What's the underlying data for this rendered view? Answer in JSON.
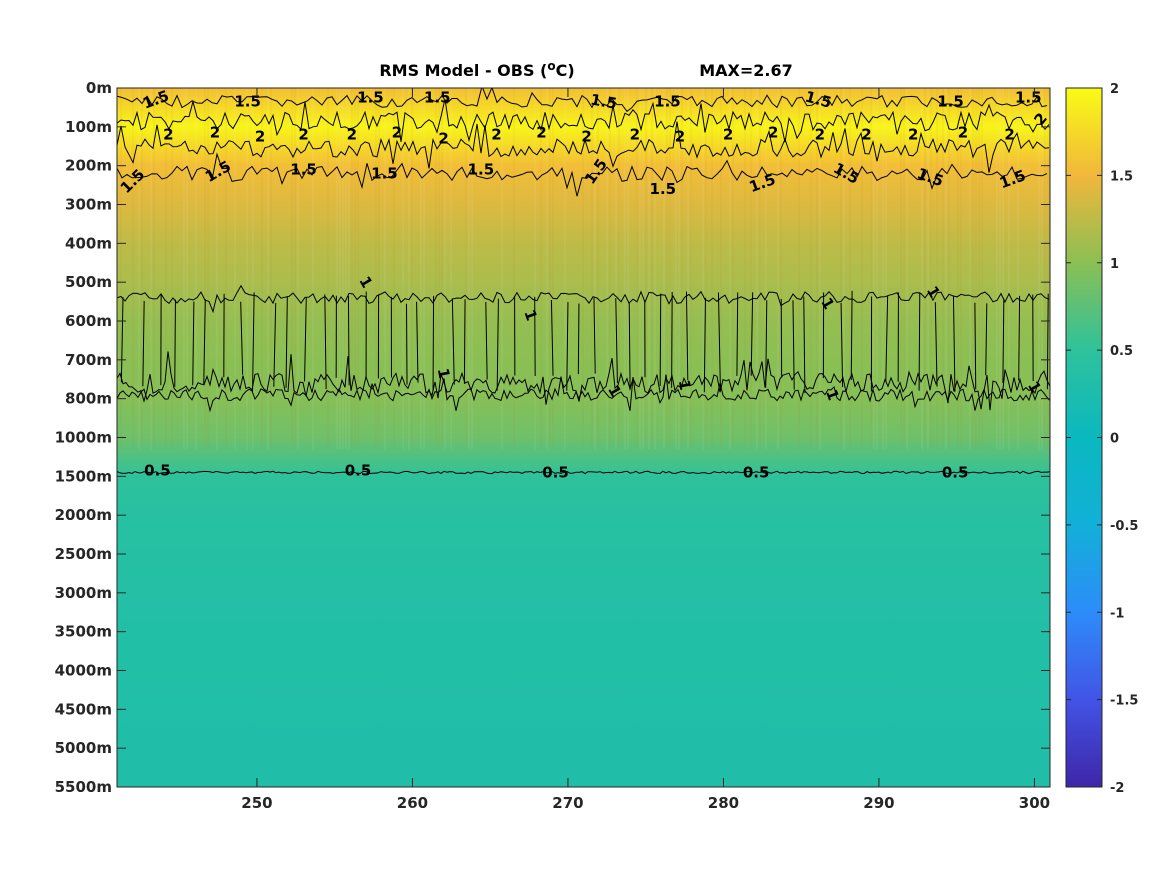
{
  "chart_data": {
    "type": "heatmap",
    "title": "RMS Model - OBS (",
    "title_sup": "o",
    "title_unit": "C)",
    "annotation": "MAX=2.67",
    "x": {
      "lim": [
        241,
        301
      ],
      "ticks": [
        250,
        260,
        270,
        280,
        290,
        300
      ],
      "tick_labels": [
        "250",
        "260",
        "270",
        "280",
        "290",
        "300"
      ]
    },
    "y": {
      "tick_labels": [
        "0m",
        "100m",
        "200m",
        "300m",
        "400m",
        "500m",
        "600m",
        "700m",
        "800m",
        "1000m",
        "1500m",
        "2000m",
        "2500m",
        "3000m",
        "3500m",
        "4000m",
        "4500m",
        "5000m",
        "5500m"
      ]
    },
    "color_limits": [
      -2,
      2
    ],
    "colormap": "parula",
    "colorbar": {
      "ticks": [
        2,
        1.5,
        1,
        0.5,
        0,
        -0.5,
        -1,
        -1.5,
        -2
      ],
      "tick_labels": [
        "2",
        "1.5",
        "1",
        "0.5",
        "0",
        "-0.5",
        "-1",
        "-1.5",
        "-2"
      ]
    },
    "depth_profile": [
      {
        "depth_label": "0m",
        "value": 1.55
      },
      {
        "depth_label": "100m",
        "value": 1.95
      },
      {
        "depth_label": "200m",
        "value": 1.55
      },
      {
        "depth_label": "300m",
        "value": 1.4
      },
      {
        "depth_label": "400m",
        "value": 1.25
      },
      {
        "depth_label": "500m",
        "value": 1.15
      },
      {
        "depth_label": "600m",
        "value": 1.05
      },
      {
        "depth_label": "700m",
        "value": 1.0
      },
      {
        "depth_label": "800m",
        "value": 0.98
      },
      {
        "depth_label": "1000m",
        "value": 0.85
      },
      {
        "depth_label": "1500m",
        "value": 0.5
      },
      {
        "depth_label": "2000m",
        "value": 0.4
      },
      {
        "depth_label": "2500m",
        "value": 0.38
      },
      {
        "depth_label": "3000m",
        "value": 0.36
      },
      {
        "depth_label": "3500m",
        "value": 0.34
      },
      {
        "depth_label": "4000m",
        "value": 0.33
      },
      {
        "depth_label": "4500m",
        "value": 0.32
      },
      {
        "depth_label": "5000m",
        "value": 0.31
      },
      {
        "depth_label": "5500m",
        "value": 0.31
      }
    ],
    "contour_labels": [
      {
        "text": "1.5",
        "x": 243.5,
        "depth_index": 0.3,
        "rot": -20
      },
      {
        "text": "1.5",
        "x": 249.4,
        "depth_index": 0.35,
        "rot": 0
      },
      {
        "text": "1.5",
        "x": 257.3,
        "depth_index": 0.25,
        "rot": 0
      },
      {
        "text": "1.5",
        "x": 261.6,
        "depth_index": 0.25,
        "rot": 0
      },
      {
        "text": "1.5",
        "x": 272.3,
        "depth_index": 0.35,
        "rot": 10
      },
      {
        "text": "1.5",
        "x": 276.4,
        "depth_index": 0.35,
        "rot": 0
      },
      {
        "text": "1.5",
        "x": 286.1,
        "depth_index": 0.3,
        "rot": 15
      },
      {
        "text": "1.5",
        "x": 294.6,
        "depth_index": 0.35,
        "rot": 0
      },
      {
        "text": "1.5",
        "x": 299.6,
        "depth_index": 0.25,
        "rot": 0
      },
      {
        "text": "1.5",
        "x": 242.0,
        "depth_index": 2.4,
        "rot": -45
      },
      {
        "text": "1.5",
        "x": 247.5,
        "depth_index": 2.15,
        "rot": -30
      },
      {
        "text": "1.5",
        "x": 253.0,
        "depth_index": 2.1,
        "rot": 0
      },
      {
        "text": "1.5",
        "x": 258.2,
        "depth_index": 2.2,
        "rot": 0
      },
      {
        "text": "1.5",
        "x": 264.4,
        "depth_index": 2.1,
        "rot": 0
      },
      {
        "text": "1.5",
        "x": 271.8,
        "depth_index": 2.15,
        "rot": -55
      },
      {
        "text": "1.5",
        "x": 276.1,
        "depth_index": 2.6,
        "rot": 0
      },
      {
        "text": "1.5",
        "x": 282.5,
        "depth_index": 2.45,
        "rot": -20
      },
      {
        "text": "1.5",
        "x": 287.9,
        "depth_index": 2.2,
        "rot": 30
      },
      {
        "text": "1.5",
        "x": 293.3,
        "depth_index": 2.3,
        "rot": 20
      },
      {
        "text": "1.5",
        "x": 298.6,
        "depth_index": 2.35,
        "rot": -20
      },
      {
        "text": "2",
        "x": 244.3,
        "depth_index": 1.2,
        "rot": 0
      },
      {
        "text": "2",
        "x": 247.3,
        "depth_index": 1.15,
        "rot": 0
      },
      {
        "text": "2",
        "x": 250.2,
        "depth_index": 1.25,
        "rot": 0
      },
      {
        "text": "2",
        "x": 253.0,
        "depth_index": 1.2,
        "rot": 0
      },
      {
        "text": "2",
        "x": 256.1,
        "depth_index": 1.2,
        "rot": 0
      },
      {
        "text": "2",
        "x": 259.0,
        "depth_index": 1.15,
        "rot": 0
      },
      {
        "text": "2",
        "x": 262.0,
        "depth_index": 1.3,
        "rot": 0
      },
      {
        "text": "2",
        "x": 265.4,
        "depth_index": 1.2,
        "rot": 0
      },
      {
        "text": "2",
        "x": 268.3,
        "depth_index": 1.15,
        "rot": 0
      },
      {
        "text": "2",
        "x": 271.2,
        "depth_index": 1.25,
        "rot": 0
      },
      {
        "text": "2",
        "x": 274.3,
        "depth_index": 1.2,
        "rot": 0
      },
      {
        "text": "2",
        "x": 277.2,
        "depth_index": 1.25,
        "rot": 0
      },
      {
        "text": "2",
        "x": 280.3,
        "depth_index": 1.2,
        "rot": 0
      },
      {
        "text": "2",
        "x": 283.2,
        "depth_index": 1.15,
        "rot": 0
      },
      {
        "text": "2",
        "x": 286.2,
        "depth_index": 1.2,
        "rot": 0
      },
      {
        "text": "2",
        "x": 289.2,
        "depth_index": 1.2,
        "rot": 0
      },
      {
        "text": "2",
        "x": 292.2,
        "depth_index": 1.2,
        "rot": 0
      },
      {
        "text": "2",
        "x": 295.4,
        "depth_index": 1.15,
        "rot": 0
      },
      {
        "text": "2",
        "x": 298.4,
        "depth_index": 1.2,
        "rot": 0
      },
      {
        "text": "2",
        "x": 300.4,
        "depth_index": 0.8,
        "rot": -50
      },
      {
        "text": "1",
        "x": 257.0,
        "depth_index": 5.0,
        "rot": 60
      },
      {
        "text": "1",
        "x": 267.6,
        "depth_index": 5.85,
        "rot": 70
      },
      {
        "text": "1",
        "x": 286.7,
        "depth_index": 5.55,
        "rot": 60
      },
      {
        "text": "1",
        "x": 293.5,
        "depth_index": 5.25,
        "rot": 60
      },
      {
        "text": "1",
        "x": 262.0,
        "depth_index": 7.35,
        "rot": 80
      },
      {
        "text": "1",
        "x": 273.0,
        "depth_index": 7.8,
        "rot": 60
      },
      {
        "text": "1",
        "x": 277.5,
        "depth_index": 7.65,
        "rot": 80
      },
      {
        "text": "1",
        "x": 287.0,
        "depth_index": 7.9,
        "rot": 70
      },
      {
        "text": "1",
        "x": 300.0,
        "depth_index": 7.7,
        "rot": 60
      },
      {
        "text": "0.5",
        "x": 243.6,
        "depth_index": 9.85,
        "rot": 0
      },
      {
        "text": "0.5",
        "x": 256.5,
        "depth_index": 9.85,
        "rot": 0
      },
      {
        "text": "0.5",
        "x": 269.2,
        "depth_index": 9.9,
        "rot": 0
      },
      {
        "text": "0.5",
        "x": 282.1,
        "depth_index": 9.9,
        "rot": 0
      },
      {
        "text": "0.5",
        "x": 294.9,
        "depth_index": 9.9,
        "rot": 0
      }
    ]
  }
}
